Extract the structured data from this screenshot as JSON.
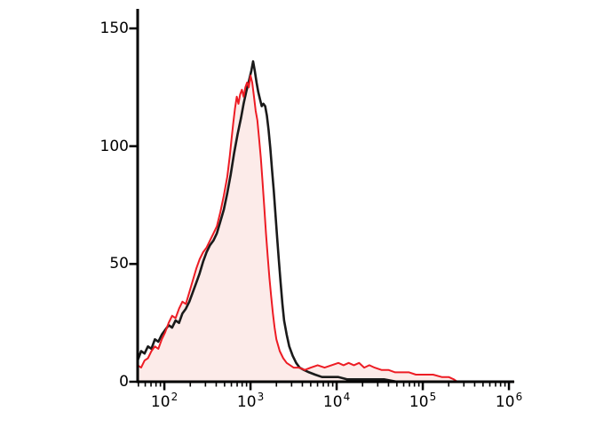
{
  "chart_data": {
    "type": "line",
    "subtype": "flow-cytometry-histogram-overlay",
    "title": "",
    "xlabel": "",
    "ylabel": "",
    "x_scale": "log10",
    "xlim_log": [
      1.69,
      6.05
    ],
    "ylim": [
      0,
      150
    ],
    "grid": false,
    "legend": "none",
    "background_color": "#ffffff",
    "axis_color": "#000000",
    "x_ticks": [
      {
        "base": "10",
        "exp": "2",
        "log": 2
      },
      {
        "base": "10",
        "exp": "3",
        "log": 3
      },
      {
        "base": "10",
        "exp": "4",
        "log": 4
      },
      {
        "base": "10",
        "exp": "5",
        "log": 5
      },
      {
        "base": "10",
        "exp": "6",
        "log": 6
      }
    ],
    "y_ticks": [
      {
        "label": "0",
        "value": 0
      },
      {
        "label": "50",
        "value": 50
      },
      {
        "label": "100",
        "value": 100
      },
      {
        "label": "150",
        "value": 150
      }
    ],
    "series": [
      {
        "name": "black-histogram",
        "color": "#1a1a1a",
        "fill": "none",
        "line_width": 2.6,
        "points": [
          [
            1.69,
            9
          ],
          [
            1.73,
            13
          ],
          [
            1.77,
            12
          ],
          [
            1.81,
            15
          ],
          [
            1.85,
            14
          ],
          [
            1.89,
            18
          ],
          [
            1.93,
            17
          ],
          [
            1.97,
            20
          ],
          [
            2.01,
            22
          ],
          [
            2.05,
            24
          ],
          [
            2.09,
            23
          ],
          [
            2.13,
            26
          ],
          [
            2.17,
            25
          ],
          [
            2.21,
            29
          ],
          [
            2.25,
            31
          ],
          [
            2.29,
            34
          ],
          [
            2.33,
            38
          ],
          [
            2.37,
            42
          ],
          [
            2.41,
            46
          ],
          [
            2.45,
            51
          ],
          [
            2.49,
            55
          ],
          [
            2.53,
            58
          ],
          [
            2.57,
            60
          ],
          [
            2.61,
            63
          ],
          [
            2.65,
            68
          ],
          [
            2.69,
            73
          ],
          [
            2.73,
            80
          ],
          [
            2.77,
            88
          ],
          [
            2.81,
            97
          ],
          [
            2.85,
            105
          ],
          [
            2.89,
            112
          ],
          [
            2.92,
            118
          ],
          [
            2.95,
            123
          ],
          [
            2.97,
            126
          ],
          [
            2.99,
            129
          ],
          [
            3.01,
            132
          ],
          [
            3.03,
            136
          ],
          [
            3.05,
            132
          ],
          [
            3.07,
            127
          ],
          [
            3.09,
            123
          ],
          [
            3.11,
            120
          ],
          [
            3.13,
            117
          ],
          [
            3.15,
            118
          ],
          [
            3.17,
            117
          ],
          [
            3.19,
            113
          ],
          [
            3.21,
            107
          ],
          [
            3.23,
            99
          ],
          [
            3.25,
            90
          ],
          [
            3.27,
            81
          ],
          [
            3.29,
            71
          ],
          [
            3.31,
            61
          ],
          [
            3.33,
            51
          ],
          [
            3.35,
            42
          ],
          [
            3.37,
            33
          ],
          [
            3.39,
            26
          ],
          [
            3.42,
            20
          ],
          [
            3.45,
            15
          ],
          [
            3.49,
            11
          ],
          [
            3.53,
            8
          ],
          [
            3.57,
            6
          ],
          [
            3.62,
            5
          ],
          [
            3.68,
            4
          ],
          [
            3.75,
            3
          ],
          [
            3.83,
            2
          ],
          [
            3.92,
            2
          ],
          [
            4.02,
            2
          ],
          [
            4.12,
            1
          ],
          [
            4.25,
            1
          ],
          [
            4.4,
            1
          ],
          [
            4.55,
            1
          ],
          [
            4.7,
            0
          ],
          [
            5.0,
            0
          ],
          [
            5.5,
            0
          ],
          [
            6.05,
            0
          ]
        ]
      },
      {
        "name": "red-histogram",
        "color": "#ed1c24",
        "fill": "#fcebe9",
        "line_width": 2.0,
        "points": [
          [
            1.69,
            7
          ],
          [
            1.73,
            6
          ],
          [
            1.77,
            9
          ],
          [
            1.81,
            10
          ],
          [
            1.85,
            13
          ],
          [
            1.89,
            15
          ],
          [
            1.93,
            14
          ],
          [
            1.97,
            18
          ],
          [
            2.01,
            21
          ],
          [
            2.05,
            25
          ],
          [
            2.09,
            28
          ],
          [
            2.13,
            27
          ],
          [
            2.17,
            31
          ],
          [
            2.21,
            34
          ],
          [
            2.25,
            33
          ],
          [
            2.29,
            38
          ],
          [
            2.33,
            43
          ],
          [
            2.37,
            48
          ],
          [
            2.41,
            52
          ],
          [
            2.45,
            55
          ],
          [
            2.49,
            57
          ],
          [
            2.53,
            60
          ],
          [
            2.57,
            63
          ],
          [
            2.61,
            66
          ],
          [
            2.65,
            72
          ],
          [
            2.69,
            79
          ],
          [
            2.73,
            87
          ],
          [
            2.76,
            96
          ],
          [
            2.78,
            103
          ],
          [
            2.8,
            110
          ],
          [
            2.82,
            116
          ],
          [
            2.84,
            121
          ],
          [
            2.86,
            118
          ],
          [
            2.88,
            122
          ],
          [
            2.9,
            124
          ],
          [
            2.92,
            121
          ],
          [
            2.94,
            125
          ],
          [
            2.96,
            127
          ],
          [
            2.98,
            125
          ],
          [
            3.0,
            130
          ],
          [
            3.02,
            127
          ],
          [
            3.04,
            121
          ],
          [
            3.06,
            115
          ],
          [
            3.08,
            111
          ],
          [
            3.1,
            103
          ],
          [
            3.12,
            95
          ],
          [
            3.14,
            85
          ],
          [
            3.16,
            74
          ],
          [
            3.18,
            63
          ],
          [
            3.2,
            53
          ],
          [
            3.22,
            44
          ],
          [
            3.24,
            36
          ],
          [
            3.26,
            29
          ],
          [
            3.28,
            23
          ],
          [
            3.3,
            18
          ],
          [
            3.34,
            13
          ],
          [
            3.38,
            10
          ],
          [
            3.42,
            8
          ],
          [
            3.46,
            7
          ],
          [
            3.5,
            6
          ],
          [
            3.56,
            6
          ],
          [
            3.63,
            5
          ],
          [
            3.7,
            6
          ],
          [
            3.78,
            7
          ],
          [
            3.86,
            6
          ],
          [
            3.94,
            7
          ],
          [
            4.02,
            8
          ],
          [
            4.08,
            7
          ],
          [
            4.14,
            8
          ],
          [
            4.2,
            7
          ],
          [
            4.26,
            8
          ],
          [
            4.32,
            6
          ],
          [
            4.38,
            7
          ],
          [
            4.44,
            6
          ],
          [
            4.52,
            5
          ],
          [
            4.6,
            5
          ],
          [
            4.68,
            4
          ],
          [
            4.76,
            4
          ],
          [
            4.84,
            4
          ],
          [
            4.92,
            3
          ],
          [
            5.02,
            3
          ],
          [
            5.12,
            3
          ],
          [
            5.22,
            2
          ],
          [
            5.3,
            2
          ],
          [
            5.36,
            1
          ],
          [
            5.4,
            0
          ],
          [
            6.05,
            0
          ]
        ]
      }
    ]
  }
}
